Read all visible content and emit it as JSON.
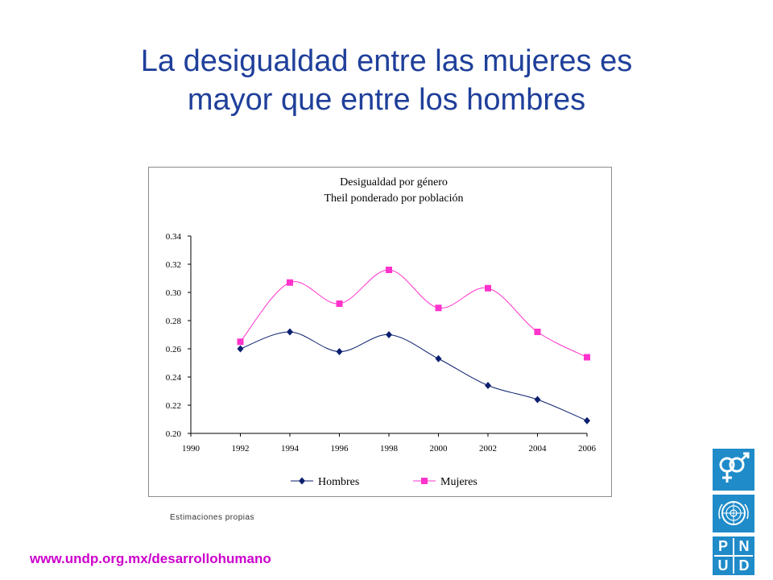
{
  "slide": {
    "title_line1": "La desigualdad entre las mujeres es",
    "title_line2": "mayor que entre los hombres",
    "source_note": "Estimaciones propias",
    "footer_url": "www.undp.org.mx/desarrollohumano"
  },
  "logo": {
    "pnud_letters": [
      "P",
      "N",
      "U",
      "D"
    ]
  },
  "chart_data": {
    "type": "line",
    "title": "Desigualdad por género",
    "subtitle": "Theil ponderado por población",
    "x": [
      1992,
      1994,
      1996,
      1998,
      2000,
      2002,
      2004,
      2006
    ],
    "x_ticks": [
      "1990",
      "1992",
      "1994",
      "1996",
      "1998",
      "2000",
      "2002",
      "2004",
      "2006"
    ],
    "xlim": [
      1990,
      2006
    ],
    "y_ticks": [
      "0.34",
      "0.32",
      "0.30",
      "0.28",
      "0.26",
      "0.24",
      "0.22",
      "0.20"
    ],
    "ylim": [
      0.2,
      0.34
    ],
    "grid": false,
    "legend_position": "bottom",
    "series": [
      {
        "name": "Hombres",
        "color": "#0a1f6e",
        "marker": "diamond",
        "values": [
          0.26,
          0.272,
          0.258,
          0.27,
          0.253,
          0.234,
          0.224,
          0.209
        ]
      },
      {
        "name": "Mujeres",
        "color": "#ff33cc",
        "marker": "square",
        "values": [
          0.265,
          0.307,
          0.292,
          0.316,
          0.289,
          0.303,
          0.272,
          0.254
        ]
      }
    ]
  }
}
